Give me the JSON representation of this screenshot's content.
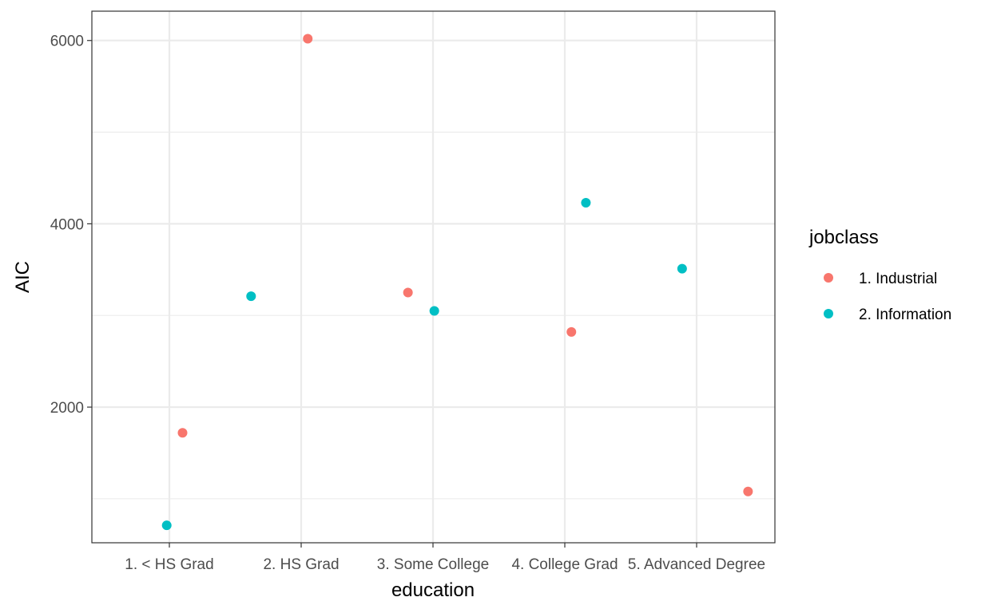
{
  "chart_data": {
    "type": "scatter",
    "xlabel": "education",
    "ylabel": "AIC",
    "categories": [
      "1. < HS Grad",
      "2. HS Grad",
      "3. Some College",
      "4. College Grad",
      "5. Advanced Degree"
    ],
    "y_ticks": [
      2000,
      4000,
      6000
    ],
    "y_minor_ticks": [
      1000,
      3000,
      5000
    ],
    "ylim": [
      520,
      6320
    ],
    "grid": true,
    "legend": {
      "title": "jobclass",
      "placement": "right",
      "entries": [
        {
          "name": "1. Industrial",
          "color": "#F8766D"
        },
        {
          "name": "2. Information",
          "color": "#00BFC4"
        }
      ]
    },
    "series": [
      {
        "name": "1. Industrial",
        "color": "#F8766D",
        "points": [
          {
            "category": "1. < HS Grad",
            "x_jitter": 0.1,
            "y": 1720
          },
          {
            "category": "2. HS Grad",
            "x_jitter": 0.05,
            "y": 6020
          },
          {
            "category": "3. Some College",
            "x_jitter": -0.19,
            "y": 3250
          },
          {
            "category": "4. College Grad",
            "x_jitter": 0.05,
            "y": 2820
          },
          {
            "category": "5. Advanced Degree",
            "x_jitter": 0.39,
            "y": 1080
          }
        ]
      },
      {
        "name": "2. Information",
        "color": "#00BFC4",
        "points": [
          {
            "category": "1. < HS Grad",
            "x_jitter": -0.02,
            "y": 710
          },
          {
            "category": "2. HS Grad",
            "x_jitter": -0.38,
            "y": 3210
          },
          {
            "category": "3. Some College",
            "x_jitter": 0.01,
            "y": 3050
          },
          {
            "category": "4. College Grad",
            "x_jitter": 0.16,
            "y": 4230
          },
          {
            "category": "5. Advanced Degree",
            "x_jitter": -0.11,
            "y": 3510
          }
        ]
      }
    ]
  }
}
